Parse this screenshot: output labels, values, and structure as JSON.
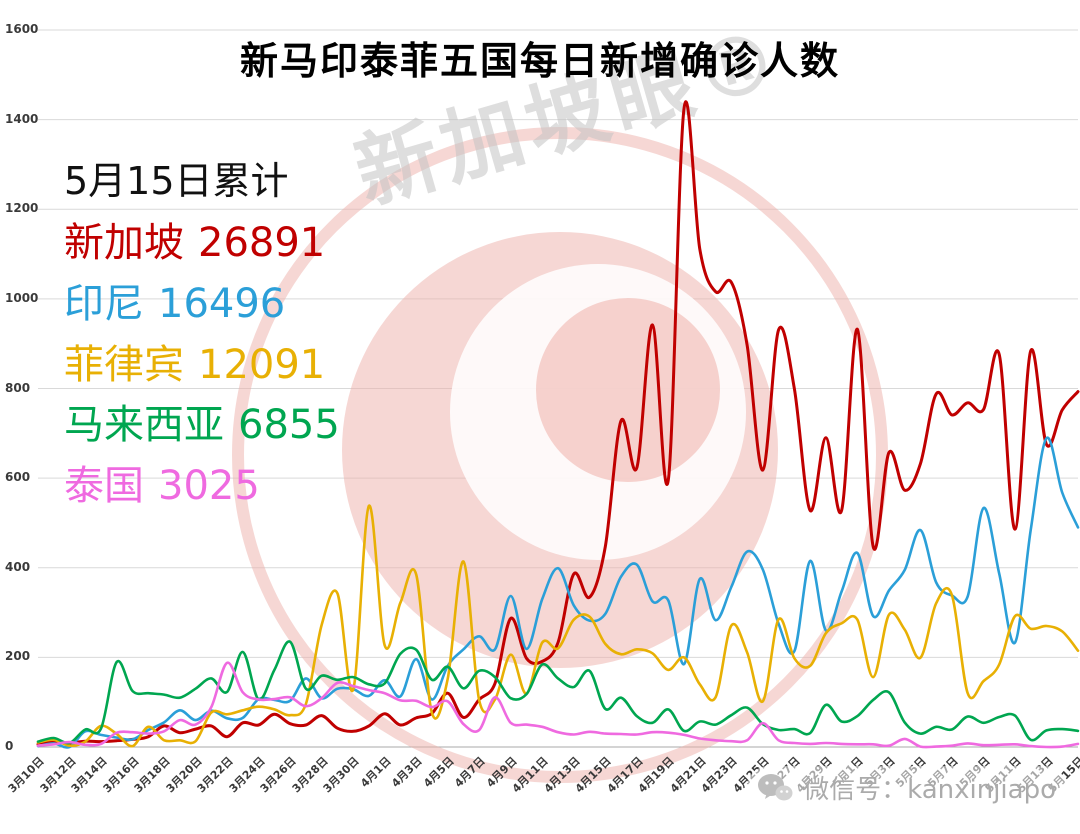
{
  "summary": {
    "heading": "5月15日累计",
    "items": [
      {
        "id": "singapore",
        "label": "新加坡",
        "value": "26891",
        "color": "#c00000"
      },
      {
        "id": "indonesia",
        "label": "印尼",
        "value": "16496",
        "color": "#2b9fd8"
      },
      {
        "id": "philippines",
        "label": "菲律宾",
        "value": "12091",
        "color": "#e8b004"
      },
      {
        "id": "malaysia",
        "label": "马来西亚",
        "value": "6855",
        "color": "#00a650"
      },
      {
        "id": "thailand",
        "label": "泰国",
        "value": "3025",
        "color": "#ef6ae0"
      }
    ]
  },
  "watermark": {
    "text": "新加坡眼®"
  },
  "footer": {
    "wechat_label": "微信号：kanxinjiapo"
  },
  "chart_data": {
    "type": "line",
    "title": "新马印泰菲五国每日新增确诊人数",
    "xlabel": "",
    "ylabel": "",
    "ylim": [
      0,
      1600
    ],
    "yticks": [
      0,
      200,
      400,
      600,
      800,
      1000,
      1200,
      1400,
      1600
    ],
    "grid": true,
    "legend_position": "annotation-top-left",
    "x_tick_step": 2,
    "x": [
      "3月10日",
      "3月11日",
      "3月12日",
      "3月13日",
      "3月14日",
      "3月15日",
      "3月16日",
      "3月17日",
      "3月18日",
      "3月19日",
      "3月20日",
      "3月21日",
      "3月22日",
      "3月23日",
      "3月24日",
      "3月25日",
      "3月26日",
      "3月27日",
      "3月28日",
      "3月29日",
      "3月30日",
      "3月31日",
      "4月1日",
      "4月2日",
      "4月3日",
      "4月4日",
      "4月5日",
      "4月6日",
      "4月7日",
      "4月8日",
      "4月9日",
      "4月10日",
      "4月11日",
      "4月12日",
      "4月13日",
      "4月14日",
      "4月15日",
      "4月16日",
      "4月17日",
      "4月18日",
      "4月19日",
      "4月20日",
      "4月21日",
      "4月22日",
      "4月23日",
      "4月24日",
      "4月25日",
      "4月26日",
      "4月27日",
      "4月28日",
      "4月29日",
      "4月30日",
      "5月1日",
      "5月2日",
      "5月3日",
      "5月4日",
      "5月5日",
      "5月6日",
      "5月7日",
      "5月8日",
      "5月9日",
      "5月10日",
      "5月11日",
      "5月12日",
      "5月13日",
      "5月14日",
      "5月15日"
    ],
    "x_tick_labels": [
      "3月10日",
      "3月12日",
      "3月14日",
      "3月16日",
      "3月18日",
      "3月20日",
      "3月22日",
      "3月24日",
      "3月26日",
      "3月28日",
      "3月30日",
      "4月1日",
      "4月3日",
      "4月5日",
      "4月7日",
      "4月9日",
      "4月11日",
      "4月13日",
      "4月15日",
      "4月17日",
      "4月19日",
      "4月21日",
      "4月23日",
      "4月25日",
      "4月27日",
      "4月29日",
      "5月1日",
      "5月3日",
      "5月5日",
      "5月7日",
      "5月9日",
      "5月11日",
      "5月13日",
      "5月15日"
    ],
    "series": [
      {
        "id": "singapore",
        "name": "新加坡",
        "color": "#c00000",
        "line_width": 3,
        "values": [
          6,
          12,
          9,
          13,
          12,
          14,
          17,
          23,
          47,
          32,
          40,
          47,
          23,
          54,
          49,
          73,
          52,
          49,
          70,
          42,
          35,
          47,
          74,
          49,
          65,
          75,
          120,
          66,
          106,
          142,
          287,
          198,
          191,
          233,
          386,
          334,
          447,
          728,
          623,
          942,
          596,
          1426,
          1111,
          1016,
          1037,
          897,
          618,
          931,
          799,
          528,
          690,
          528,
          932,
          447,
          657,
          573,
          632,
          788,
          741,
          768,
          753,
          876,
          486,
          884,
          675,
          752,
          793
        ]
      },
      {
        "id": "indonesia",
        "name": "印尼",
        "color": "#2b9fd8",
        "line_width": 2.6,
        "values": [
          2,
          8,
          0,
          35,
          27,
          21,
          17,
          38,
          55,
          82,
          60,
          81,
          64,
          65,
          107,
          105,
          103,
          153,
          109,
          130,
          129,
          114,
          149,
          113,
          196,
          106,
          181,
          218,
          247,
          218,
          337,
          219,
          330,
          399,
          316,
          282,
          297,
          380,
          407,
          325,
          327,
          185,
          375,
          283,
          357,
          436,
          396,
          275,
          214,
          415,
          260,
          347,
          433,
          292,
          349,
          395,
          484,
          367,
          338,
          336,
          533,
          387,
          233,
          484,
          689,
          568,
          490
        ]
      },
      {
        "id": "philippines",
        "name": "菲律宾",
        "color": "#e8b004",
        "line_width": 2.6,
        "values": [
          10,
          16,
          3,
          12,
          47,
          29,
          2,
          45,
          15,
          15,
          13,
          77,
          73,
          82,
          90,
          84,
          71,
          96,
          272,
          343,
          128,
          538,
          227,
          322,
          385,
          76,
          152,
          414,
          104,
          106,
          206,
          119,
          233,
          220,
          284,
          291,
          230,
          207,
          218,
          209,
          172,
          200,
          140,
          111,
          271,
          211,
          102,
          285,
          198,
          181,
          254,
          276,
          284,
          156,
          295,
          262,
          199,
          321,
          339,
          120,
          147,
          184,
          292,
          264,
          270,
          258,
          215
        ]
      },
      {
        "id": "malaysia",
        "name": "马来西亚",
        "color": "#00a650",
        "line_width": 2.6,
        "values": [
          12,
          20,
          9,
          39,
          41,
          190,
          125,
          120,
          117,
          110,
          130,
          153,
          123,
          212,
          106,
          172,
          235,
          130,
          159,
          150,
          156,
          140,
          142,
          208,
          217,
          150,
          179,
          131,
          170,
          156,
          109,
          118,
          184,
          153,
          134,
          170,
          85,
          110,
          69,
          54,
          84,
          36,
          57,
          50,
          71,
          88,
          51,
          38,
          40,
          31,
          94,
          57,
          69,
          105,
          122,
          55,
          30,
          45,
          39,
          68,
          54,
          67,
          70,
          16,
          37,
          40,
          36
        ]
      },
      {
        "id": "thailand",
        "name": "泰国",
        "color": "#ef6ae0",
        "line_width": 2.6,
        "values": [
          3,
          6,
          11,
          5,
          7,
          32,
          33,
          30,
          35,
          60,
          50,
          89,
          188,
          122,
          106,
          107,
          111,
          91,
          109,
          143,
          136,
          127,
          120,
          104,
          103,
          89,
          102,
          51,
          38,
          111,
          54,
          50,
          45,
          33,
          28,
          34,
          30,
          29,
          28,
          33,
          32,
          27,
          19,
          15,
          13,
          15,
          53,
          15,
          9,
          7,
          9,
          7,
          6,
          6,
          3,
          18,
          1,
          1,
          3,
          8,
          4,
          5,
          6,
          2,
          0,
          1,
          7
        ]
      }
    ]
  }
}
